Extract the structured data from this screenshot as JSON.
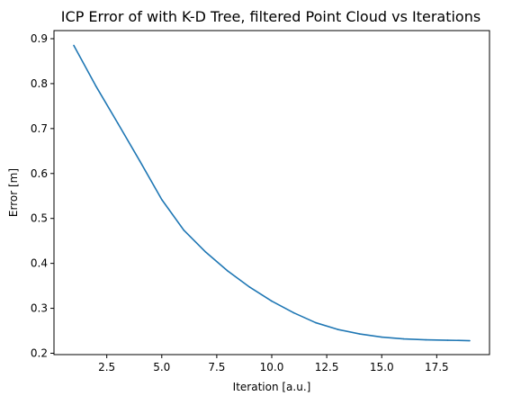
{
  "chart_data": {
    "type": "line",
    "title": "ICP Error of with K-D Tree, filtered Point Cloud vs Iterations",
    "xlabel": "Iteration [a.u.]",
    "ylabel": "Error [m]",
    "xlim": [
      0.1,
      19.9
    ],
    "ylim": [
      0.197,
      0.918
    ],
    "xticks": [
      2.5,
      5.0,
      7.5,
      10.0,
      12.5,
      15.0,
      17.5
    ],
    "xtick_labels": [
      "2.5",
      "5.0",
      "7.5",
      "10.0",
      "12.5",
      "15.0",
      "17.5"
    ],
    "yticks": [
      0.2,
      0.3,
      0.4,
      0.5,
      0.6,
      0.7,
      0.8,
      0.9
    ],
    "ytick_labels": [
      "0.2",
      "0.3",
      "0.4",
      "0.5",
      "0.6",
      "0.7",
      "0.8",
      "0.9"
    ],
    "grid": false,
    "series": [
      {
        "color": "#1f77b4",
        "x": [
          1,
          2,
          3,
          4,
          5,
          6,
          7,
          8,
          9,
          10,
          11,
          12,
          13,
          14,
          15,
          16,
          17,
          18,
          19
        ],
        "y": [
          0.885,
          0.795,
          0.712,
          0.628,
          0.542,
          0.474,
          0.425,
          0.383,
          0.347,
          0.316,
          0.29,
          0.268,
          0.253,
          0.243,
          0.236,
          0.232,
          0.23,
          0.229,
          0.228
        ]
      }
    ]
  }
}
